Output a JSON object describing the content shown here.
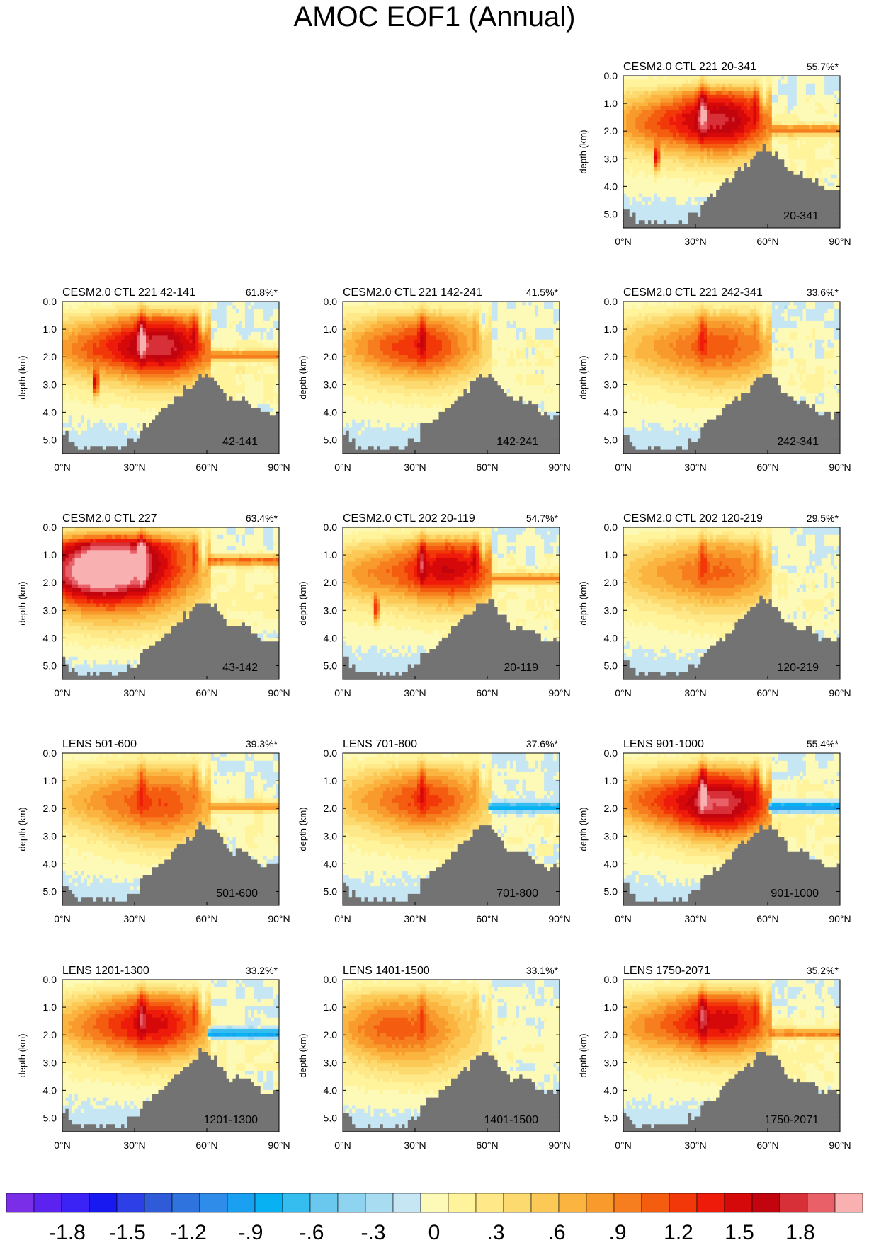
{
  "page": {
    "title": "AMOC EOF1 (Annual)"
  },
  "chart_data": [
    {
      "type": "heatmap",
      "title": "CESM2.0 CTL 221 20-341",
      "variance": "55.7%*",
      "label": "20-341",
      "amp": 1.6,
      "peak_lat": 42,
      "peak_depth": 1.6,
      "spread": 1.0,
      "ridge_lat": 14,
      "shelf": "pos",
      "shelf_depth": 1.95,
      "xlabel": "",
      "ylabel": "depth (km)",
      "xticks": [
        "0°N",
        "30°N",
        "60°N",
        "90°N"
      ],
      "yticks": [
        "0.0",
        "1.0",
        "2.0",
        "3.0",
        "4.0",
        "5.0"
      ],
      "xlim": [
        0,
        90
      ],
      "ylim": [
        5.5,
        0
      ]
    },
    {
      "type": "heatmap",
      "title": "CESM2.0 CTL 221 42-141",
      "variance": "61.8%*",
      "label": "42-141",
      "amp": 1.65,
      "peak_lat": 42,
      "peak_depth": 1.6,
      "spread": 1.0,
      "ridge_lat": 14,
      "shelf": "pos",
      "shelf_depth": 1.95,
      "xlabel": "",
      "ylabel": "depth (km)",
      "xticks": [
        "0°N",
        "30°N",
        "60°N",
        "90°N"
      ],
      "yticks": [
        "0.0",
        "1.0",
        "2.0",
        "3.0",
        "4.0",
        "5.0"
      ],
      "xlim": [
        0,
        90
      ],
      "ylim": [
        5.5,
        0
      ]
    },
    {
      "type": "heatmap",
      "title": "CESM2.0 CTL 221 142-241",
      "variance": "41.5%*",
      "label": "142-241",
      "amp": 1.1,
      "peak_lat": 36,
      "peak_depth": 1.6,
      "spread": 1.0,
      "ridge_lat": null,
      "shelf": "none",
      "shelf_depth": 1.95,
      "xlabel": "",
      "ylabel": "depth (km)",
      "xticks": [
        "0°N",
        "30°N",
        "60°N",
        "90°N"
      ],
      "yticks": [
        "0.0",
        "1.0",
        "2.0",
        "3.0",
        "4.0",
        "5.0"
      ],
      "xlim": [
        0,
        90
      ],
      "ylim": [
        5.5,
        0
      ]
    },
    {
      "type": "heatmap",
      "title": "CESM2.0 CTL 221 242-341",
      "variance": "33.6%*",
      "label": "242-341",
      "amp": 1.0,
      "peak_lat": 42,
      "peak_depth": 1.6,
      "spread": 1.1,
      "ridge_lat": null,
      "shelf": "none",
      "shelf_depth": 1.95,
      "xlabel": "",
      "ylabel": "depth (km)",
      "xticks": [
        "0°N",
        "30°N",
        "60°N",
        "90°N"
      ],
      "yticks": [
        "0.0",
        "1.0",
        "2.0",
        "3.0",
        "4.0",
        "5.0"
      ],
      "xlim": [
        0,
        90
      ],
      "ylim": [
        5.5,
        0
      ]
    },
    {
      "type": "heatmap",
      "title": "CESM2.0 CTL 227",
      "variance": "63.4%*",
      "label": "43-142",
      "amp": 1.75,
      "peak_lat": 25,
      "peak_depth": 1.3,
      "spread": 1.4,
      "ridge_lat": null,
      "shelf": "pos",
      "shelf_depth": 1.2,
      "xlabel": "",
      "ylabel": "depth (km)",
      "xticks": [
        "0°N",
        "30°N",
        "60°N",
        "90°N"
      ],
      "yticks": [
        "0.0",
        "1.0",
        "2.0",
        "3.0",
        "4.0",
        "5.0"
      ],
      "xlim": [
        0,
        90
      ],
      "ylim": [
        5.5,
        0
      ]
    },
    {
      "type": "heatmap",
      "title": "CESM2.0 CTL 202 20-119",
      "variance": "54.7%*",
      "label": "20-119",
      "amp": 1.45,
      "peak_lat": 45,
      "peak_depth": 1.5,
      "spread": 1.0,
      "ridge_lat": 14,
      "shelf": "pos",
      "shelf_depth": 1.85,
      "xlabel": "",
      "ylabel": "depth (km)",
      "xticks": [
        "0°N",
        "30°N",
        "60°N",
        "90°N"
      ],
      "yticks": [
        "0.0",
        "1.0",
        "2.0",
        "3.0",
        "4.0",
        "5.0"
      ],
      "xlim": [
        0,
        90
      ],
      "ylim": [
        5.5,
        0
      ]
    },
    {
      "type": "heatmap",
      "title": "CESM2.0 CTL 202 120-219",
      "variance": "29.5%*",
      "label": "120-219",
      "amp": 0.95,
      "peak_lat": 42,
      "peak_depth": 1.6,
      "spread": 1.1,
      "ridge_lat": null,
      "shelf": "none",
      "shelf_depth": 1.95,
      "xlabel": "",
      "ylabel": "depth (km)",
      "xticks": [
        "0°N",
        "30°N",
        "60°N",
        "90°N"
      ],
      "yticks": [
        "0.0",
        "1.0",
        "2.0",
        "3.0",
        "4.0",
        "5.0"
      ],
      "xlim": [
        0,
        90
      ],
      "ylim": [
        5.5,
        0
      ]
    },
    {
      "type": "heatmap",
      "title": "LENS 501-600",
      "variance": "39.3%*",
      "label": "501-600",
      "amp": 1.05,
      "peak_lat": 42,
      "peak_depth": 1.8,
      "spread": 1.1,
      "ridge_lat": null,
      "shelf": "pos",
      "shelf_depth": 1.95,
      "xlabel": "",
      "ylabel": "depth (km)",
      "xticks": [
        "0°N",
        "30°N",
        "60°N",
        "90°N"
      ],
      "yticks": [
        "0.0",
        "1.0",
        "2.0",
        "3.0",
        "4.0",
        "5.0"
      ],
      "xlim": [
        0,
        90
      ],
      "ylim": [
        5.5,
        0
      ]
    },
    {
      "type": "heatmap",
      "title": "LENS 701-800",
      "variance": "37.6%*",
      "label": "701-800",
      "amp": 1.05,
      "peak_lat": 38,
      "peak_depth": 1.7,
      "spread": 1.0,
      "ridge_lat": null,
      "shelf": "neg",
      "shelf_depth": 1.95,
      "xlabel": "",
      "ylabel": "depth (km)",
      "xticks": [
        "0°N",
        "30°N",
        "60°N",
        "90°N"
      ],
      "yticks": [
        "0.0",
        "1.0",
        "2.0",
        "3.0",
        "4.0",
        "5.0"
      ],
      "xlim": [
        0,
        90
      ],
      "ylim": [
        5.5,
        0
      ]
    },
    {
      "type": "heatmap",
      "title": "LENS 901-1000",
      "variance": "55.4%*",
      "label": "901-1000",
      "amp": 1.7,
      "peak_lat": 42,
      "peak_depth": 1.8,
      "spread": 1.0,
      "ridge_lat": null,
      "shelf": "neg",
      "shelf_depth": 1.95,
      "xlabel": "",
      "ylabel": "depth (km)",
      "xticks": [
        "0°N",
        "30°N",
        "60°N",
        "90°N"
      ],
      "yticks": [
        "0.0",
        "1.0",
        "2.0",
        "3.0",
        "4.0",
        "5.0"
      ],
      "xlim": [
        0,
        90
      ],
      "ylim": [
        5.5,
        0
      ]
    },
    {
      "type": "heatmap",
      "title": "LENS 1201-1300",
      "variance": "33.2%*",
      "label": "1201-1300",
      "amp": 1.35,
      "peak_lat": 40,
      "peak_depth": 1.6,
      "spread": 1.0,
      "ridge_lat": null,
      "shelf": "neg",
      "shelf_depth": 1.95,
      "xlabel": "",
      "ylabel": "depth (km)",
      "xticks": [
        "0°N",
        "30°N",
        "60°N",
        "90°N"
      ],
      "yticks": [
        "0.0",
        "1.0",
        "2.0",
        "3.0",
        "4.0",
        "5.0"
      ],
      "xlim": [
        0,
        90
      ],
      "ylim": [
        5.5,
        0
      ]
    },
    {
      "type": "heatmap",
      "title": "LENS 1401-1500",
      "variance": "33.1%*",
      "label": "1401-1500",
      "amp": 0.85,
      "peak_lat": 30,
      "peak_depth": 1.8,
      "spread": 1.2,
      "ridge_lat": null,
      "shelf": "none",
      "shelf_depth": 1.95,
      "xlabel": "",
      "ylabel": "depth (km)",
      "xticks": [
        "0°N",
        "30°N",
        "60°N",
        "90°N"
      ],
      "yticks": [
        "0.0",
        "1.0",
        "2.0",
        "3.0",
        "4.0",
        "5.0"
      ],
      "xlim": [
        0,
        90
      ],
      "ylim": [
        5.5,
        0
      ]
    },
    {
      "type": "heatmap",
      "title": "LENS 1750-2071",
      "variance": "35.2%*",
      "label": "1750-2071",
      "amp": 1.4,
      "peak_lat": 42,
      "peak_depth": 1.5,
      "spread": 1.0,
      "ridge_lat": null,
      "shelf": "pos",
      "shelf_depth": 1.95,
      "xlabel": "",
      "ylabel": "depth (km)",
      "xticks": [
        "0°N",
        "30°N",
        "60°N",
        "90°N"
      ],
      "yticks": [
        "0.0",
        "1.0",
        "2.0",
        "3.0",
        "4.0",
        "5.0"
      ],
      "xlim": [
        0,
        90
      ],
      "ylim": [
        5.5,
        0
      ]
    }
  ],
  "colorbar": {
    "labels": [
      "-1.8",
      "-1.5",
      "-1.2",
      "-.9",
      "-.6",
      "-.3",
      "0",
      ".3",
      ".6",
      ".9",
      "1.2",
      "1.5",
      "1.8"
    ],
    "colors": [
      "#7a2ee8",
      "#5c22f0",
      "#3b22f5",
      "#1818f0",
      "#2d3fe6",
      "#2f5ad8",
      "#2f73de",
      "#2f8ce8",
      "#1aa0f0",
      "#08b2f2",
      "#36bdf0",
      "#6ac8ee",
      "#8ed4f0",
      "#a8dcf0",
      "#c6e6f4",
      "#fdfab8",
      "#fff49c",
      "#fee888",
      "#fdda70",
      "#fcc856",
      "#fbb440",
      "#f89a2c",
      "#f77e1e",
      "#f45c10",
      "#f23808",
      "#ee1a0a",
      "#d6090a",
      "#c2040e",
      "#d83038",
      "#e96068",
      "#f8b0b0"
    ]
  }
}
